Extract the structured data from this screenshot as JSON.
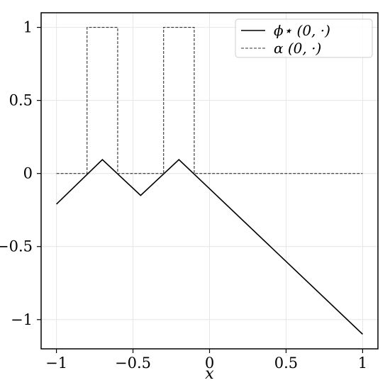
{
  "chart_data": {
    "type": "line",
    "title": "",
    "xlabel": "x",
    "ylabel": "",
    "xlim": [
      -1.1,
      1.1
    ],
    "ylim": [
      -1.2,
      1.1
    ],
    "grid": true,
    "legend_position": "top-right",
    "x_ticks": [
      {
        "value": -1,
        "label": "−1"
      },
      {
        "value": -0.5,
        "label": "−0.5"
      },
      {
        "value": 0,
        "label": "0"
      },
      {
        "value": 0.5,
        "label": "0.5"
      },
      {
        "value": 1,
        "label": "1"
      }
    ],
    "y_ticks": [
      {
        "value": 1,
        "label": "1"
      },
      {
        "value": 0.5,
        "label": "0.5"
      },
      {
        "value": 0,
        "label": "0"
      },
      {
        "value": -0.5,
        "label": "−0.5"
      },
      {
        "value": -1,
        "label": "−1"
      }
    ],
    "series": [
      {
        "name": "ϕ⋆ (0, ·)",
        "style": "solid",
        "color": "#000000",
        "x": [
          -1.0,
          -0.7,
          -0.45,
          -0.2,
          1.0
        ],
        "y": [
          -0.21,
          0.095,
          -0.15,
          0.095,
          -1.1
        ]
      },
      {
        "name": "α (0, ·)",
        "style": "dashed",
        "color": "#333333",
        "x": [
          -1.0,
          -0.8,
          -0.8,
          -0.6,
          -0.6,
          -0.3,
          -0.3,
          -0.1,
          -0.1,
          1.0
        ],
        "y": [
          0,
          0,
          1,
          1,
          0,
          0,
          1,
          1,
          0,
          0
        ]
      }
    ]
  }
}
